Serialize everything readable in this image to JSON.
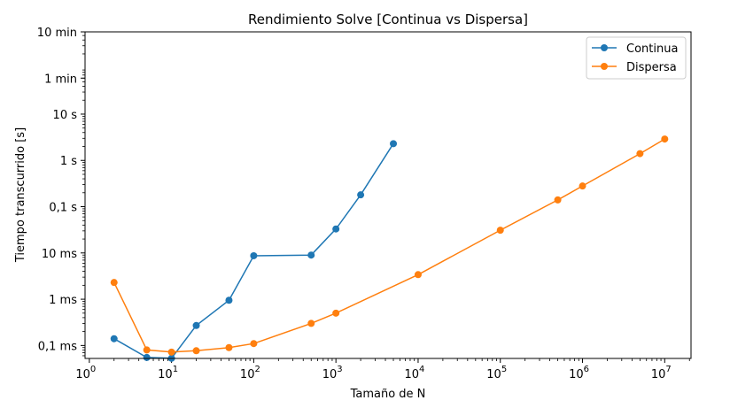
{
  "chart_data": {
    "type": "line",
    "title": "Rendimiento Solve [Continua vs Dispersa]",
    "xlabel": "Tamaño de N",
    "ylabel": "Tiempo transcurrido [s]",
    "x_scale": "log",
    "y_scale": "log",
    "x_ticks": [
      {
        "value": 1,
        "base": "10",
        "exp": "0"
      },
      {
        "value": 10,
        "base": "10",
        "exp": "1"
      },
      {
        "value": 100,
        "base": "10",
        "exp": "2"
      },
      {
        "value": 1000,
        "base": "10",
        "exp": "3"
      },
      {
        "value": 10000,
        "base": "10",
        "exp": "4"
      },
      {
        "value": 100000,
        "base": "10",
        "exp": "5"
      },
      {
        "value": 1000000,
        "base": "10",
        "exp": "6"
      },
      {
        "value": 10000000,
        "base": "10",
        "exp": "7"
      }
    ],
    "y_ticks": [
      {
        "value": 0.0001,
        "label": "0,1 ms"
      },
      {
        "value": 0.001,
        "label": "1 ms"
      },
      {
        "value": 0.01,
        "label": "10 ms"
      },
      {
        "value": 0.1,
        "label": "0,1 s"
      },
      {
        "value": 1,
        "label": "1 s"
      },
      {
        "value": 10,
        "label": "10 s"
      },
      {
        "value": 60,
        "label": "1 min"
      },
      {
        "value": 600,
        "label": "10 min"
      }
    ],
    "grid": false,
    "legend_position": "top-right",
    "series": [
      {
        "name": "Continua",
        "color": "#1f77b4",
        "x": [
          2,
          5,
          10,
          20,
          50,
          100,
          500,
          1000,
          2000,
          5000
        ],
        "y": [
          0.00014,
          5.5e-05,
          5.3e-05,
          0.00027,
          0.00095,
          0.0087,
          0.009,
          0.033,
          0.18,
          2.3
        ]
      },
      {
        "name": "Dispersa",
        "color": "#ff7f0e",
        "x": [
          2,
          5,
          10,
          20,
          50,
          100,
          500,
          1000,
          10000,
          100000,
          500000,
          1000000,
          5000000,
          10000000
        ],
        "y": [
          0.0023,
          8e-05,
          7.2e-05,
          7.7e-05,
          9e-05,
          0.00011,
          0.0003,
          0.0005,
          0.0034,
          0.031,
          0.14,
          0.28,
          1.4,
          2.9
        ]
      }
    ]
  }
}
